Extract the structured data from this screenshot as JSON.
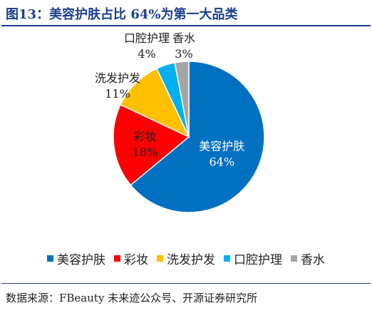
{
  "title": "图13：美容护肤占比 64%为第一大品类",
  "source": "数据来源：FBeauty 未来迹公众号、开源证券研究所",
  "chart_data": {
    "type": "pie",
    "title": "图13：美容护肤占比 64%为第一大品类",
    "legend_position": "bottom",
    "slices": [
      {
        "name": "美容护肤",
        "value": 64,
        "label": "64%",
        "color": "#0070C0"
      },
      {
        "name": "彩妆",
        "value": 18,
        "label": "18%",
        "color": "#FF0000"
      },
      {
        "name": "洗发护发",
        "value": 11,
        "label": "11%",
        "color": "#FFC000"
      },
      {
        "name": "口腔护理",
        "value": 4,
        "label": "4%",
        "color": "#00B0F0"
      },
      {
        "name": "香水",
        "value": 3,
        "label": "3%",
        "color": "#A6A6A6"
      }
    ]
  }
}
